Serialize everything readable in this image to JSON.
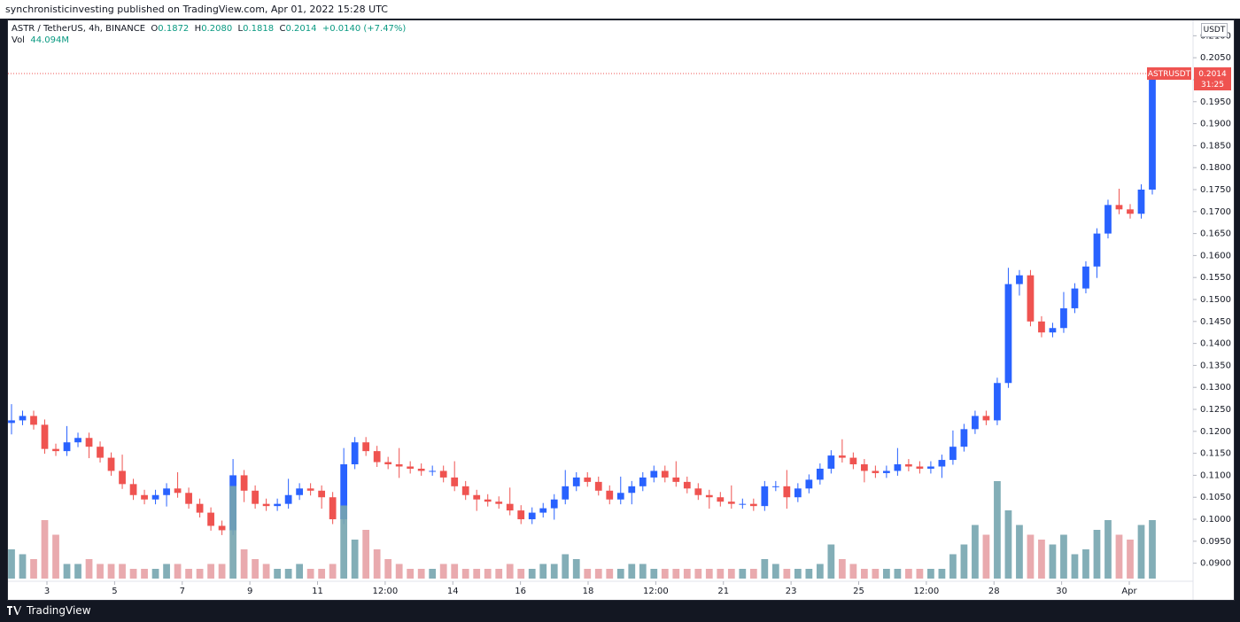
{
  "header": {
    "publisher": "synchronisticinvesting published on TradingView.com, Apr 01, 2022 15:28 UTC"
  },
  "legend": {
    "symbol": "ASTR / TetherUS, 4h, BINANCE",
    "open_label": "O",
    "open": "0.1872",
    "high_label": "H",
    "high": "0.2080",
    "low_label": "L",
    "low": "0.1818",
    "close_label": "C",
    "close": "0.2014",
    "change": "+0.0140 (+7.47%)",
    "vol_label": "Vol",
    "vol": "44.094M"
  },
  "price_axis": {
    "currency": "USDT",
    "ticks": [
      "0.2100",
      "0.2050",
      "0.2000",
      "0.1950",
      "0.1900",
      "0.1850",
      "0.1800",
      "0.1750",
      "0.1700",
      "0.1650",
      "0.1600",
      "0.1550",
      "0.1500",
      "0.1450",
      "0.1400",
      "0.1350",
      "0.1300",
      "0.1250",
      "0.1200",
      "0.1150",
      "0.1100",
      "0.1050",
      "0.1000",
      "0.0950",
      "0.0900"
    ],
    "last_label": "ASTRUSDT",
    "last_price": "0.2014",
    "countdown": "31:25"
  },
  "time_axis": {
    "labels": [
      "3",
      "5",
      "7",
      "9",
      "11",
      "12:00",
      "14",
      "16",
      "18",
      "12:00",
      "21",
      "23",
      "25",
      "12:00",
      "28",
      "30",
      "Apr"
    ]
  },
  "footer": {
    "brand": "TradingView"
  },
  "colors": {
    "up": "#2962ff",
    "down": "#ef5350",
    "vol_up": "#76a5af",
    "vol_down": "#e7a1a5",
    "last_price": "#ef5350"
  },
  "chart_data": {
    "type": "candlestick",
    "symbol": "ASTR / TetherUS",
    "interval": "4h",
    "exchange": "BINANCE",
    "x": [
      "3",
      "5",
      "7",
      "9",
      "11",
      "12:00",
      "14",
      "16",
      "18",
      "12:00",
      "21",
      "23",
      "25",
      "12:00",
      "28",
      "30",
      "Apr"
    ],
    "ylim": [
      0.0865,
      0.2135
    ],
    "close_series": [
      0.1225,
      0.1235,
      0.1215,
      0.116,
      0.1155,
      0.1175,
      0.1185,
      0.1165,
      0.114,
      0.111,
      0.108,
      0.1055,
      0.1045,
      0.1055,
      0.107,
      0.106,
      0.1035,
      0.1015,
      0.0985,
      0.0975,
      0.11,
      0.1065,
      0.1035,
      0.103,
      0.1035,
      0.1055,
      0.107,
      0.1065,
      0.105,
      0.1,
      0.1125,
      0.1175,
      0.1155,
      0.113,
      0.1125,
      0.112,
      0.1115,
      0.111,
      0.111,
      0.1095,
      0.1075,
      0.1055,
      0.1045,
      0.104,
      0.1035,
      0.102,
      0.1,
      0.1015,
      0.1025,
      0.1045,
      0.1075,
      0.1095,
      0.1085,
      0.1065,
      0.1045,
      0.106,
      0.1075,
      0.1095,
      0.111,
      0.1095,
      0.1085,
      0.107,
      0.1055,
      0.105,
      0.104,
      0.1035,
      0.1035,
      0.103,
      0.1075,
      0.1075,
      0.105,
      0.107,
      0.109,
      0.1115,
      0.1145,
      0.114,
      0.1125,
      0.111,
      0.1105,
      0.111,
      0.1125,
      0.112,
      0.1115,
      0.112,
      0.1135,
      0.1165,
      0.1205,
      0.1235,
      0.1225,
      0.131,
      0.1535,
      0.1555,
      0.145,
      0.1425,
      0.1435,
      0.148,
      0.1525,
      0.1575,
      0.165,
      0.1715,
      0.1705,
      0.1695,
      0.175,
      0.2014
    ],
    "volume_relative": [
      0.3,
      0.25,
      0.2,
      0.6,
      0.45,
      0.15,
      0.15,
      0.2,
      0.15,
      0.15,
      0.15,
      0.1,
      0.1,
      0.1,
      0.15,
      0.15,
      0.1,
      0.1,
      0.15,
      0.15,
      0.95,
      0.3,
      0.2,
      0.15,
      0.1,
      0.1,
      0.15,
      0.1,
      0.1,
      0.15,
      0.75,
      0.4,
      0.5,
      0.3,
      0.2,
      0.15,
      0.1,
      0.1,
      0.1,
      0.15,
      0.15,
      0.1,
      0.1,
      0.1,
      0.1,
      0.15,
      0.1,
      0.1,
      0.15,
      0.15,
      0.25,
      0.2,
      0.1,
      0.1,
      0.1,
      0.1,
      0.15,
      0.15,
      0.1,
      0.1,
      0.1,
      0.1,
      0.1,
      0.1,
      0.1,
      0.1,
      0.1,
      0.1,
      0.2,
      0.15,
      0.1,
      0.1,
      0.1,
      0.15,
      0.35,
      0.2,
      0.15,
      0.1,
      0.1,
      0.1,
      0.1,
      0.1,
      0.1,
      0.1,
      0.1,
      0.25,
      0.35,
      0.55,
      0.45,
      1.0,
      0.7,
      0.55,
      0.45,
      0.4,
      0.35,
      0.45,
      0.25,
      0.3,
      0.5,
      0.6,
      0.45,
      0.4,
      0.55,
      0.6
    ]
  }
}
